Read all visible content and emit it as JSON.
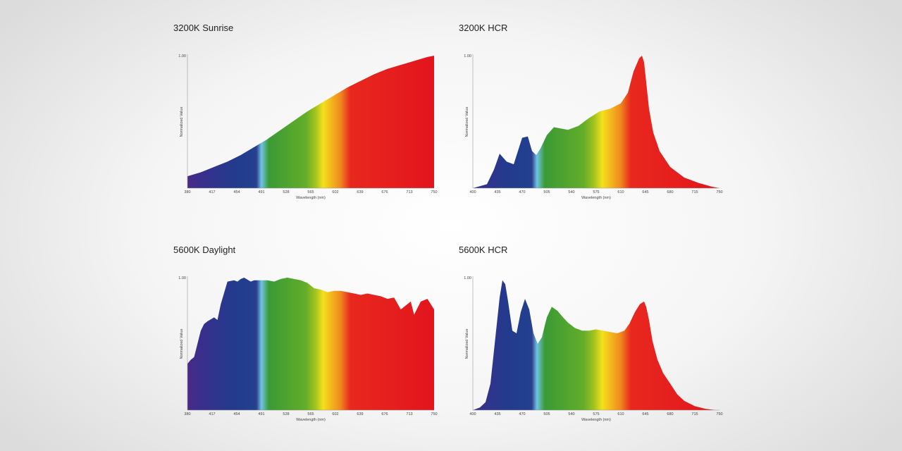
{
  "spectrum_colors": [
    "#4a2a86",
    "#3a2e8c",
    "#243a8c",
    "#22408f",
    "#2d3e8c",
    "#6fc4e4",
    "#3a9a35",
    "#63ad2a",
    "#a3c41e",
    "#f4e01c",
    "#f08a1e",
    "#e8281e",
    "#e2141d"
  ],
  "chart_data": [
    {
      "id": "sunrise3200",
      "type": "area",
      "title": "3200K Sunrise",
      "xlabel": "Wavelength (nm)",
      "ylabel": "Normalized Value",
      "ytick": "1.00",
      "xticks": [
        380,
        417,
        454,
        491,
        528,
        565,
        602,
        639,
        676,
        713,
        750
      ],
      "xlim": [
        380,
        750
      ],
      "ylim": [
        0,
        1
      ],
      "x": [
        380,
        400,
        420,
        440,
        460,
        480,
        500,
        520,
        540,
        560,
        580,
        600,
        620,
        640,
        660,
        680,
        700,
        720,
        740,
        750
      ],
      "y": [
        0.09,
        0.12,
        0.16,
        0.2,
        0.25,
        0.31,
        0.37,
        0.44,
        0.51,
        0.58,
        0.64,
        0.7,
        0.76,
        0.81,
        0.86,
        0.9,
        0.93,
        0.96,
        0.99,
        1.0
      ]
    },
    {
      "id": "hcr3200",
      "type": "area",
      "title": "3200K HCR",
      "xlabel": "Wavelength (nm)",
      "ylabel": "Normalized Value",
      "ytick": "1.00",
      "xticks": [
        400,
        435,
        470,
        505,
        540,
        575,
        610,
        645,
        680,
        715,
        750
      ],
      "xlim": [
        400,
        750
      ],
      "ylim": [
        0,
        1
      ],
      "x": [
        400,
        420,
        430,
        438,
        448,
        458,
        470,
        478,
        484,
        490,
        496,
        505,
        515,
        525,
        535,
        550,
        565,
        580,
        595,
        610,
        620,
        628,
        636,
        640,
        643,
        646,
        650,
        656,
        665,
        680,
        700,
        720,
        740,
        750
      ],
      "y": [
        0.0,
        0.03,
        0.14,
        0.26,
        0.2,
        0.18,
        0.38,
        0.39,
        0.28,
        0.25,
        0.3,
        0.4,
        0.46,
        0.45,
        0.44,
        0.47,
        0.53,
        0.58,
        0.6,
        0.64,
        0.72,
        0.88,
        0.98,
        1.0,
        0.95,
        0.8,
        0.6,
        0.42,
        0.28,
        0.16,
        0.08,
        0.04,
        0.01,
        0.0
      ]
    },
    {
      "id": "daylight5600",
      "type": "area",
      "title": "5600K Daylight",
      "xlabel": "Wavelength (nm)",
      "ylabel": "Normalized Value",
      "ytick": "1.00",
      "xticks": [
        380,
        417,
        454,
        491,
        528,
        565,
        602,
        639,
        676,
        713,
        750
      ],
      "xlim": [
        380,
        750
      ],
      "ylim": [
        0,
        1
      ],
      "x": [
        380,
        385,
        390,
        395,
        400,
        405,
        410,
        420,
        425,
        430,
        440,
        450,
        455,
        460,
        465,
        475,
        480,
        490,
        500,
        510,
        520,
        530,
        540,
        550,
        560,
        565,
        570,
        580,
        590,
        600,
        610,
        620,
        630,
        640,
        650,
        660,
        670,
        680,
        690,
        700,
        705,
        710,
        715,
        720,
        730,
        740,
        745,
        750
      ],
      "y": [
        0.35,
        0.38,
        0.4,
        0.5,
        0.6,
        0.65,
        0.67,
        0.7,
        0.68,
        0.8,
        0.97,
        0.98,
        0.97,
        0.99,
        1.0,
        0.97,
        0.98,
        0.98,
        0.98,
        0.97,
        0.99,
        1.0,
        0.99,
        0.98,
        0.96,
        0.94,
        0.92,
        0.91,
        0.89,
        0.9,
        0.9,
        0.89,
        0.88,
        0.87,
        0.88,
        0.87,
        0.86,
        0.84,
        0.85,
        0.76,
        0.78,
        0.8,
        0.82,
        0.72,
        0.82,
        0.84,
        0.8,
        0.76
      ]
    },
    {
      "id": "hcr5600",
      "type": "area",
      "title": "5600K HCR",
      "xlabel": "Wavelength (nm)",
      "ylabel": "Normalized Value",
      "ytick": "1.00",
      "xticks": [
        400,
        435,
        470,
        505,
        540,
        575,
        610,
        645,
        680,
        715,
        750
      ],
      "xlim": [
        400,
        750
      ],
      "ylim": [
        0,
        1
      ],
      "x": [
        400,
        410,
        418,
        425,
        432,
        438,
        442,
        446,
        450,
        456,
        462,
        468,
        474,
        480,
        486,
        492,
        498,
        505,
        512,
        520,
        528,
        535,
        545,
        555,
        565,
        575,
        585,
        595,
        605,
        615,
        622,
        630,
        637,
        643,
        646,
        650,
        655,
        662,
        670,
        680,
        690,
        700,
        715,
        730,
        745,
        750
      ],
      "y": [
        0.0,
        0.02,
        0.06,
        0.2,
        0.55,
        0.85,
        0.98,
        0.95,
        0.82,
        0.6,
        0.58,
        0.74,
        0.84,
        0.76,
        0.58,
        0.5,
        0.55,
        0.7,
        0.78,
        0.75,
        0.7,
        0.66,
        0.62,
        0.6,
        0.6,
        0.61,
        0.6,
        0.59,
        0.58,
        0.6,
        0.65,
        0.74,
        0.8,
        0.82,
        0.78,
        0.68,
        0.52,
        0.38,
        0.28,
        0.2,
        0.12,
        0.07,
        0.03,
        0.01,
        0.0,
        0.0
      ]
    }
  ]
}
